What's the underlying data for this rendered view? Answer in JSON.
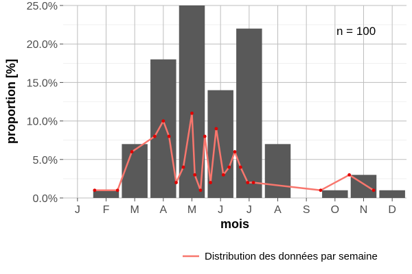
{
  "chart_data": {
    "type": "bar",
    "xlabel": "mois",
    "ylabel": "proportion [%]",
    "categories": [
      "J",
      "F",
      "M",
      "A",
      "M",
      "J",
      "J",
      "A",
      "S",
      "O",
      "N",
      "D"
    ],
    "ylim": [
      0,
      25
    ],
    "y_ticks": [
      "0.0%",
      "5.0%",
      "10.0%",
      "15.0%",
      "20.0%",
      "25.0%"
    ],
    "y_tick_values": [
      0,
      5,
      10,
      15,
      20,
      25
    ],
    "grid": true,
    "series": [
      {
        "type": "bar",
        "values": [
          0,
          1,
          7,
          18,
          25,
          14,
          22,
          7,
          0,
          1,
          3,
          1
        ],
        "color": "#595959"
      },
      {
        "type": "line",
        "name": "Distribution des données par semaine",
        "color": "#f8766d",
        "point_color": "#e00000",
        "x": [
          1.1,
          1.9,
          2.4,
          3.2,
          3.5,
          3.7,
          3.95,
          4.2,
          4.5,
          4.6,
          4.8,
          4.95,
          5.15,
          5.35,
          5.6,
          5.8,
          6.0,
          6.2,
          6.45,
          6.65,
          9.0,
          10.0,
          10.85
        ],
        "y": [
          1,
          1,
          6,
          8,
          10,
          8,
          2,
          4,
          11,
          3,
          1,
          8,
          2,
          9,
          3,
          4,
          6,
          4,
          2,
          2,
          1,
          3,
          1
        ]
      }
    ],
    "annotation": "n = 100",
    "legend": {
      "position": "bottom",
      "entries": [
        "Distribution des données par semaine"
      ]
    }
  }
}
